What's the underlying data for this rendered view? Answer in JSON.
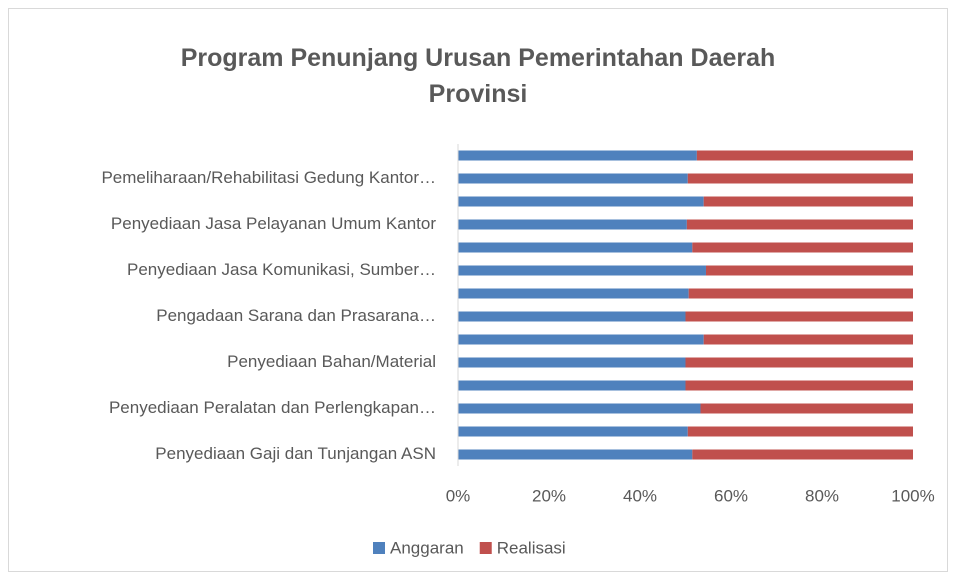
{
  "chart_data": {
    "type": "stacked_bar_horizontal_100",
    "title": "Program Penunjang Urusan Pemerintahan Daerah Provinsi",
    "categories": [
      null,
      "Pemeliharaan/Rehabilitasi Gedung Kantor…",
      null,
      "Penyediaan Jasa Pelayanan Umum Kantor",
      null,
      "Penyediaan Jasa Komunikasi, Sumber…",
      null,
      "Pengadaan Sarana dan Prasarana…",
      null,
      "Penyediaan Bahan/Material",
      null,
      "Penyediaan Peralatan dan Perlengkapan…",
      null,
      "Penyediaan Gaji dan Tunjangan ASN"
    ],
    "series": [
      {
        "name": "Anggaran",
        "color": "#4f81bd",
        "values": [
          52.5,
          50.5,
          54,
          50.3,
          51.5,
          54.5,
          50.7,
          50,
          54,
          50,
          50,
          53.3,
          50.5,
          51.5
        ]
      },
      {
        "name": "Realisasi",
        "color": "#c0504d",
        "values": [
          47.5,
          49.5,
          46,
          49.7,
          48.5,
          45.5,
          49.3,
          50,
          46,
          50,
          50,
          46.7,
          49.5,
          48.5
        ]
      }
    ],
    "xlim": [
      0,
      100
    ],
    "xticks": [
      {
        "value": 0,
        "label": "0%"
      },
      {
        "value": 20,
        "label": "20%"
      },
      {
        "value": 40,
        "label": "40%"
      },
      {
        "value": 60,
        "label": "60%"
      },
      {
        "value": 80,
        "label": "80%"
      },
      {
        "value": 100,
        "label": "100%"
      }
    ],
    "grid": false,
    "legend": "bottom"
  }
}
